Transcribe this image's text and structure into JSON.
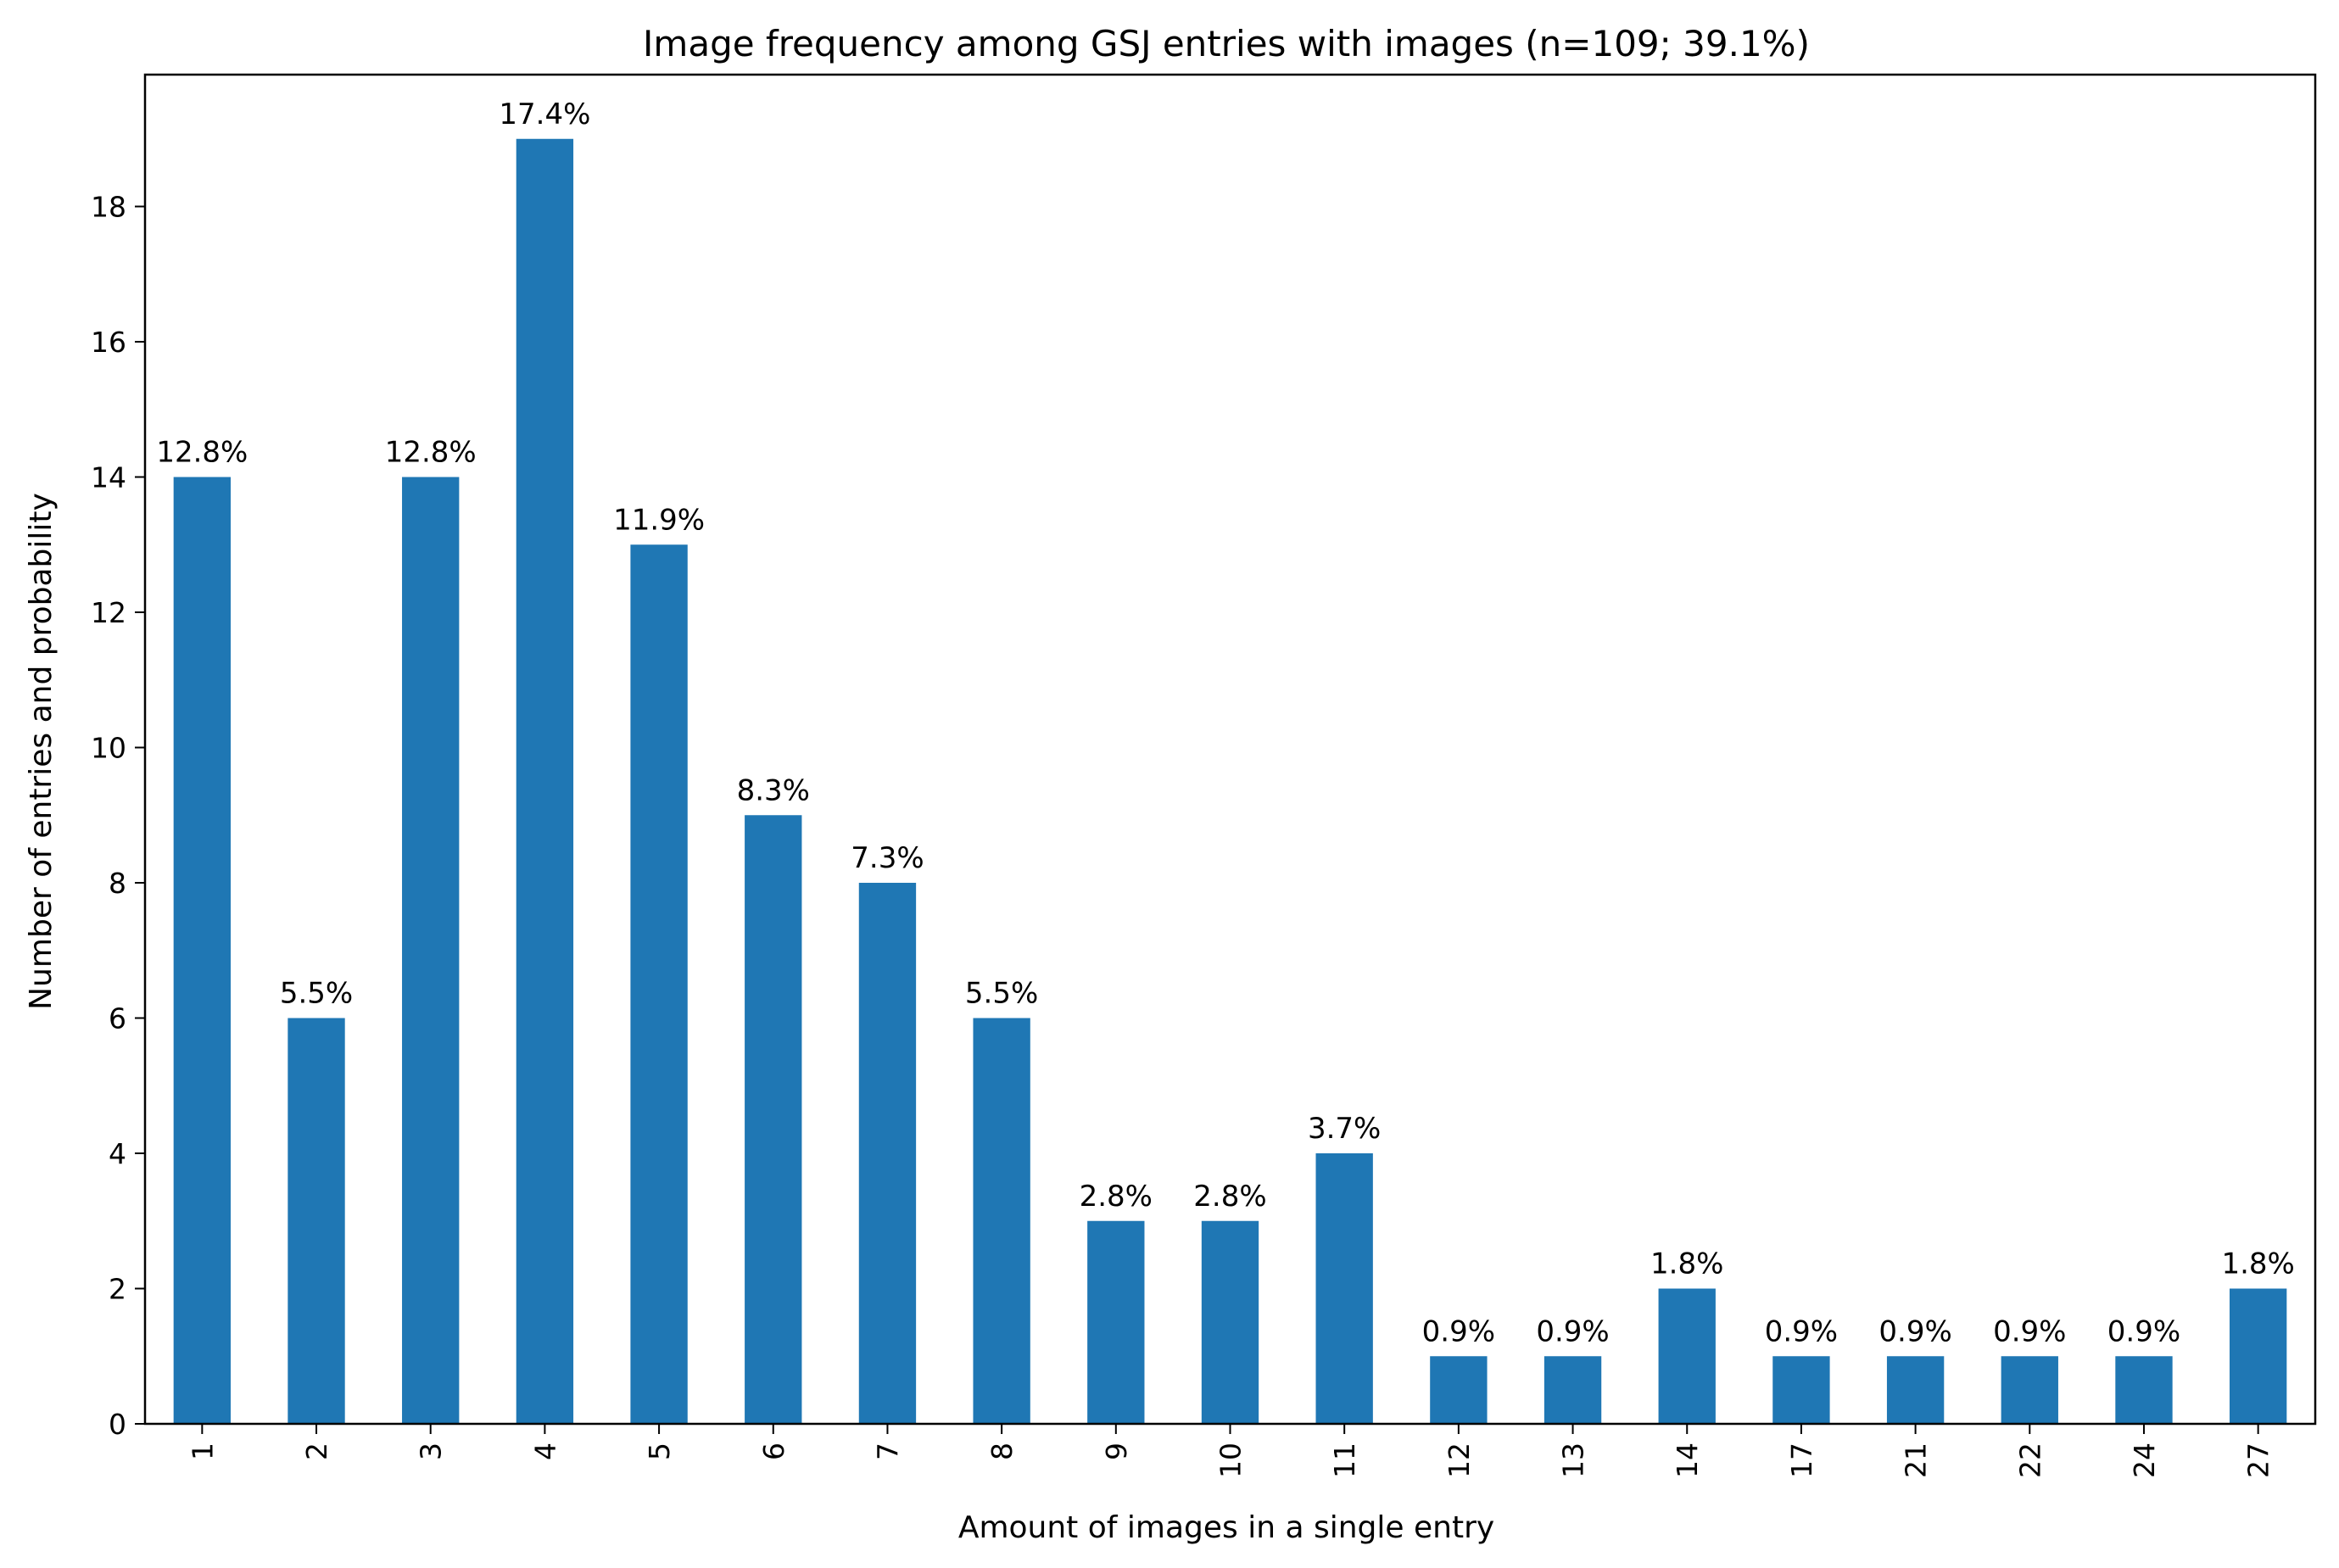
{
  "chart_data": {
    "type": "bar",
    "title": "Image frequency among GSJ entries with images (n=109; 39.1%)",
    "xlabel": "Amount of images in a single entry",
    "ylabel": "Number of entries and probability",
    "categories": [
      "1",
      "2",
      "3",
      "4",
      "5",
      "6",
      "7",
      "8",
      "9",
      "10",
      "11",
      "12",
      "13",
      "14",
      "17",
      "21",
      "22",
      "24",
      "27"
    ],
    "values": [
      14,
      6,
      14,
      19,
      13,
      9,
      8,
      6,
      3,
      3,
      4,
      1,
      1,
      2,
      1,
      1,
      1,
      1,
      2
    ],
    "labels": [
      "12.8%",
      "5.5%",
      "12.8%",
      "17.4%",
      "11.9%",
      "8.3%",
      "7.3%",
      "5.5%",
      "2.8%",
      "2.8%",
      "3.7%",
      "0.9%",
      "0.9%",
      "1.8%",
      "0.9%",
      "0.9%",
      "0.9%",
      "0.9%",
      "1.8%"
    ],
    "yticks": [
      0,
      2,
      4,
      6,
      8,
      10,
      12,
      14,
      16,
      18
    ],
    "ylim": [
      0,
      19.95
    ],
    "bar_color": "#1f77b4",
    "grid": false,
    "legend": "none",
    "x_tick_rotation": "vertical"
  }
}
